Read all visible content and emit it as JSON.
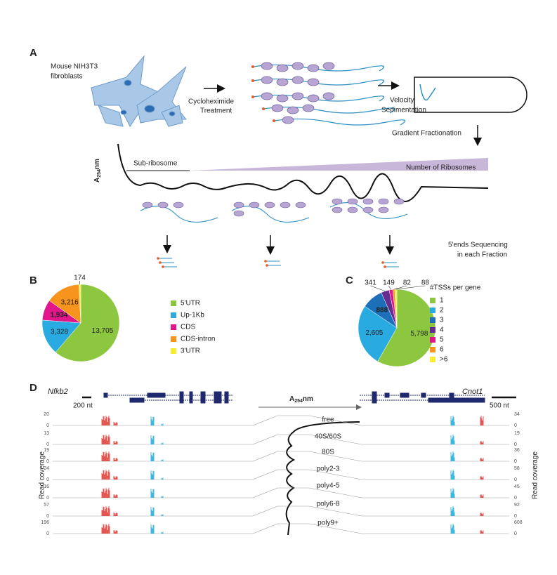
{
  "panel_a": {
    "letter": "A",
    "cells": [
      "Mouse NIH3T3",
      "fibroblasts"
    ],
    "treatment": [
      "Cycloheximide",
      "Treatment"
    ],
    "sedimentation": [
      "Velocity",
      "Sedimentation"
    ],
    "fractionation": "Gradient Fractionation",
    "absorbance": {
      "base": "A",
      "sub": "254",
      "unit": "nm"
    },
    "sub_ribosome": "Sub-ribosome",
    "ribosomes": "Number of Ribosomes",
    "sequencing": [
      "5'ends Sequencing",
      "in each Fraction"
    ]
  },
  "chart_data": [
    {
      "type": "pie",
      "letter": "B",
      "categories": [
        "5'UTR",
        "Up-1Kb",
        "CDS",
        "CDS-intron",
        "3'UTR"
      ],
      "values": [
        13705,
        3328,
        1934,
        3216,
        174
      ],
      "value_labels": [
        "13,705",
        "3,328",
        "1,934",
        "3,216",
        "174"
      ],
      "colors": [
        "#8dc63f",
        "#29abe2",
        "#e0168a",
        "#f7941d",
        "#f9ed32"
      ]
    },
    {
      "type": "pie",
      "letter": "C",
      "legend_title": "#TSSs per gene",
      "categories": [
        "1",
        "2",
        "3",
        "4",
        "5",
        "6",
        ">6"
      ],
      "values": [
        5798,
        2605,
        888,
        341,
        149,
        82,
        88
      ],
      "value_labels": [
        "5,798",
        "2,605",
        "888",
        "341",
        "149",
        "82",
        "88"
      ],
      "colors": [
        "#8dc63f",
        "#29abe2",
        "#1c6fb8",
        "#662d91",
        "#e0168a",
        "#f7941d",
        "#f9ed32"
      ]
    }
  ],
  "panel_d": {
    "letter": "D",
    "left_gene": "Nfkb2",
    "right_gene": "Cnot1",
    "left_scale": "200 nt",
    "right_scale": "500 nt",
    "absorbance": {
      "base": "A",
      "sub": "254",
      "unit": "nm"
    },
    "axis_label": "Read coverage",
    "tracks": [
      {
        "name": "free",
        "left_max": 20,
        "left_min": 0,
        "right_max": 34,
        "right_min": 0
      },
      {
        "name": "40S/60S",
        "left_max": 13,
        "left_min": 0,
        "right_max": 19,
        "right_min": 0
      },
      {
        "name": "80S",
        "left_max": 19,
        "left_min": 0,
        "right_max": 36,
        "right_min": 0
      },
      {
        "name": "poly2-3",
        "left_max": 24,
        "left_min": 0,
        "right_max": 58,
        "right_min": 0
      },
      {
        "name": "poly4-5",
        "left_max": 16,
        "left_min": 0,
        "right_max": 45,
        "right_min": 0
      },
      {
        "name": "poly6-8",
        "left_max": 57,
        "left_min": 0,
        "right_max": 92,
        "right_min": 0
      },
      {
        "name": "poly9+",
        "left_max": 196,
        "left_min": 0,
        "right_max": 608,
        "right_min": 0
      }
    ]
  }
}
